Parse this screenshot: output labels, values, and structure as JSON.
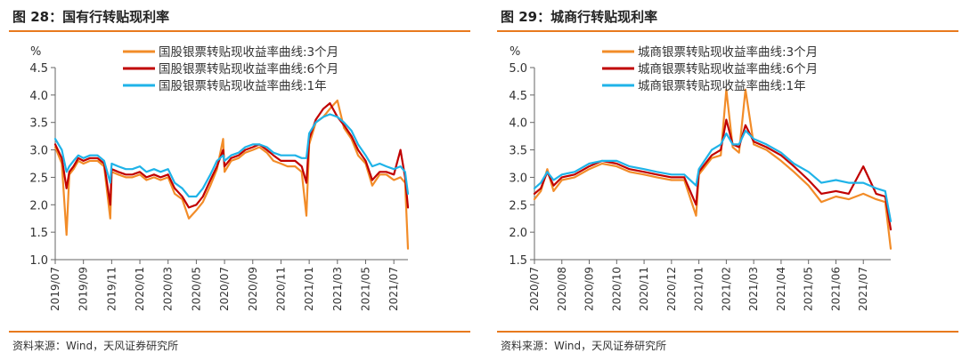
{
  "figures": [
    {
      "title": "图 28：国有行转贴现利率",
      "source": "资料来源：Wind，天风证券研究所"
    },
    {
      "title": "图 29：城商行转贴现利率",
      "source": "资料来源：Wind，天风证券研究所"
    }
  ],
  "chart_data": [
    {
      "type": "line",
      "title": "",
      "ylabel": "%",
      "ylim": [
        1.0,
        4.5
      ],
      "yticks": [
        "1.0",
        "1.5",
        "2.0",
        "2.5",
        "3.0",
        "3.5",
        "4.0",
        "4.5"
      ],
      "xlim": [
        "2019-07",
        "2021-08"
      ],
      "xticks": [
        "2019/07",
        "2019/09",
        "2019/11",
        "2020/01",
        "2020/03",
        "2020/05",
        "2020/07",
        "2020/09",
        "2020/11",
        "2021/01",
        "2021/03",
        "2021/05",
        "2021/07"
      ],
      "legend": "top-center",
      "colors": {
        "series1": "#f28c28",
        "series2": "#c00000",
        "series3": "#1fb3e8",
        "axis": "#666666"
      },
      "series": [
        {
          "name": "国股银票转贴现收益率曲线:3个月",
          "color": "#f28c28",
          "x": [
            "2019-07-01",
            "2019-07-15",
            "2019-07-25",
            "2019-08-01",
            "2019-08-10",
            "2019-08-20",
            "2019-09-01",
            "2019-09-15",
            "2019-10-01",
            "2019-10-15",
            "2019-10-28",
            "2019-11-01",
            "2019-11-15",
            "2019-12-01",
            "2019-12-15",
            "2020-01-01",
            "2020-01-15",
            "2020-02-01",
            "2020-02-15",
            "2020-03-01",
            "2020-03-15",
            "2020-04-01",
            "2020-04-15",
            "2020-05-01",
            "2020-05-15",
            "2020-06-01",
            "2020-06-15",
            "2020-06-28",
            "2020-07-01",
            "2020-07-15",
            "2020-08-01",
            "2020-08-15",
            "2020-09-01",
            "2020-09-15",
            "2020-10-01",
            "2020-10-15",
            "2020-11-01",
            "2020-11-15",
            "2020-12-01",
            "2020-12-15",
            "2020-12-25",
            "2021-01-01",
            "2021-01-15",
            "2021-02-01",
            "2021-02-15",
            "2021-03-01",
            "2021-03-15",
            "2021-04-01",
            "2021-04-15",
            "2021-05-01",
            "2021-05-15",
            "2021-06-01",
            "2021-06-15",
            "2021-07-01",
            "2021-07-15",
            "2021-07-25",
            "2021-08-01"
          ],
          "values": [
            3.05,
            2.75,
            1.45,
            2.55,
            2.65,
            2.8,
            2.75,
            2.8,
            2.8,
            2.7,
            1.75,
            2.6,
            2.55,
            2.5,
            2.5,
            2.55,
            2.45,
            2.5,
            2.45,
            2.5,
            2.2,
            2.1,
            1.75,
            1.9,
            2.05,
            2.35,
            2.65,
            3.2,
            2.6,
            2.8,
            2.85,
            2.95,
            3.0,
            3.05,
            2.95,
            2.8,
            2.75,
            2.7,
            2.7,
            2.6,
            1.8,
            3.1,
            3.5,
            3.6,
            3.75,
            3.9,
            3.4,
            3.2,
            2.9,
            2.75,
            2.35,
            2.55,
            2.55,
            2.45,
            2.5,
            2.4,
            1.2
          ]
        },
        {
          "name": "国股银票转贴现收益率曲线:6个月",
          "color": "#c00000",
          "x": [
            "2019-07-01",
            "2019-07-15",
            "2019-07-25",
            "2019-08-01",
            "2019-08-10",
            "2019-08-20",
            "2019-09-01",
            "2019-09-15",
            "2019-10-01",
            "2019-10-15",
            "2019-10-28",
            "2019-11-01",
            "2019-11-15",
            "2019-12-01",
            "2019-12-15",
            "2020-01-01",
            "2020-01-15",
            "2020-02-01",
            "2020-02-15",
            "2020-03-01",
            "2020-03-15",
            "2020-04-01",
            "2020-04-15",
            "2020-05-01",
            "2020-05-15",
            "2020-06-01",
            "2020-06-15",
            "2020-06-28",
            "2020-07-01",
            "2020-07-15",
            "2020-08-01",
            "2020-08-15",
            "2020-09-01",
            "2020-09-15",
            "2020-10-01",
            "2020-10-15",
            "2020-11-01",
            "2020-11-15",
            "2020-12-01",
            "2020-12-15",
            "2020-12-25",
            "2021-01-01",
            "2021-01-15",
            "2021-02-01",
            "2021-02-15",
            "2021-03-01",
            "2021-03-15",
            "2021-04-01",
            "2021-04-15",
            "2021-05-01",
            "2021-05-15",
            "2021-06-01",
            "2021-06-15",
            "2021-07-01",
            "2021-07-15",
            "2021-07-25",
            "2021-08-01"
          ],
          "values": [
            3.1,
            2.85,
            2.3,
            2.6,
            2.7,
            2.85,
            2.8,
            2.85,
            2.85,
            2.75,
            2.0,
            2.65,
            2.6,
            2.55,
            2.55,
            2.6,
            2.5,
            2.55,
            2.5,
            2.55,
            2.3,
            2.15,
            1.95,
            2.0,
            2.15,
            2.45,
            2.7,
            3.0,
            2.7,
            2.85,
            2.9,
            3.0,
            3.05,
            3.1,
            3.0,
            2.9,
            2.8,
            2.8,
            2.8,
            2.7,
            2.4,
            3.2,
            3.55,
            3.75,
            3.85,
            3.6,
            3.45,
            3.25,
            3.0,
            2.8,
            2.45,
            2.6,
            2.6,
            2.55,
            3.0,
            2.5,
            1.95
          ]
        },
        {
          "name": "国股银票转贴现收益率曲线:1年",
          "color": "#1fb3e8",
          "x": [
            "2019-07-01",
            "2019-07-15",
            "2019-07-25",
            "2019-08-01",
            "2019-08-10",
            "2019-08-20",
            "2019-09-01",
            "2019-09-15",
            "2019-10-01",
            "2019-10-15",
            "2019-10-28",
            "2019-11-01",
            "2019-11-15",
            "2019-12-01",
            "2019-12-15",
            "2020-01-01",
            "2020-01-15",
            "2020-02-01",
            "2020-02-15",
            "2020-03-01",
            "2020-03-15",
            "2020-04-01",
            "2020-04-15",
            "2020-05-01",
            "2020-05-15",
            "2020-06-01",
            "2020-06-15",
            "2020-06-28",
            "2020-07-01",
            "2020-07-15",
            "2020-08-01",
            "2020-08-15",
            "2020-09-01",
            "2020-09-15",
            "2020-10-01",
            "2020-10-15",
            "2020-11-01",
            "2020-11-15",
            "2020-12-01",
            "2020-12-15",
            "2020-12-25",
            "2021-01-01",
            "2021-01-15",
            "2021-02-01",
            "2021-02-15",
            "2021-03-01",
            "2021-03-15",
            "2021-04-01",
            "2021-04-15",
            "2021-05-01",
            "2021-05-15",
            "2021-06-01",
            "2021-06-15",
            "2021-07-01",
            "2021-07-15",
            "2021-07-25",
            "2021-08-01"
          ],
          "values": [
            3.2,
            3.0,
            2.6,
            2.7,
            2.8,
            2.9,
            2.85,
            2.9,
            2.9,
            2.8,
            2.4,
            2.75,
            2.7,
            2.65,
            2.65,
            2.7,
            2.6,
            2.65,
            2.6,
            2.65,
            2.4,
            2.3,
            2.15,
            2.15,
            2.3,
            2.55,
            2.8,
            2.9,
            2.8,
            2.9,
            2.95,
            3.05,
            3.1,
            3.1,
            3.05,
            2.95,
            2.9,
            2.9,
            2.9,
            2.85,
            2.85,
            3.3,
            3.5,
            3.6,
            3.65,
            3.6,
            3.5,
            3.35,
            3.1,
            2.9,
            2.7,
            2.75,
            2.7,
            2.65,
            2.7,
            2.6,
            2.2
          ]
        }
      ]
    },
    {
      "type": "line",
      "title": "",
      "ylabel": "%",
      "ylim": [
        1.5,
        5.0
      ],
      "yticks": [
        "1.5",
        "2.0",
        "2.5",
        "3.0",
        "3.5",
        "4.0",
        "4.5",
        "5.0"
      ],
      "xlim": [
        "2020-07",
        "2021-08"
      ],
      "xticks": [
        "2020/07",
        "2020/08",
        "2020/09",
        "2020/10",
        "2020/11",
        "2020/12",
        "2021/01",
        "2021/02",
        "2021/03",
        "2021/04",
        "2021/05",
        "2021/06",
        "2021/07"
      ],
      "legend": "top-center",
      "colors": {
        "series1": "#f28c28",
        "series2": "#c00000",
        "series3": "#1fb3e8",
        "axis": "#666666"
      },
      "series": [
        {
          "name": "城商银票转贴现收益率曲线:3个月",
          "color": "#f28c28",
          "x": [
            "2020-07-01",
            "2020-07-08",
            "2020-07-15",
            "2020-07-22",
            "2020-08-01",
            "2020-08-15",
            "2020-09-01",
            "2020-09-15",
            "2020-10-01",
            "2020-10-15",
            "2020-11-01",
            "2020-11-15",
            "2020-12-01",
            "2020-12-15",
            "2020-12-28",
            "2021-01-01",
            "2021-01-15",
            "2021-01-25",
            "2021-02-01",
            "2021-02-08",
            "2021-02-15",
            "2021-02-22",
            "2021-03-01",
            "2021-03-15",
            "2021-04-01",
            "2021-04-15",
            "2021-05-01",
            "2021-05-15",
            "2021-06-01",
            "2021-06-15",
            "2021-07-01",
            "2021-07-15",
            "2021-07-25",
            "2021-08-01"
          ],
          "values": [
            2.6,
            2.75,
            3.15,
            2.75,
            2.95,
            3.0,
            3.15,
            3.25,
            3.2,
            3.1,
            3.05,
            3.0,
            2.95,
            2.95,
            2.3,
            3.05,
            3.35,
            3.4,
            4.6,
            3.55,
            3.45,
            4.6,
            3.6,
            3.5,
            3.3,
            3.1,
            2.85,
            2.55,
            2.65,
            2.6,
            2.7,
            2.6,
            2.55,
            1.7
          ]
        },
        {
          "name": "城商银票转贴现收益率曲线:6个月",
          "color": "#c00000",
          "x": [
            "2020-07-01",
            "2020-07-08",
            "2020-07-15",
            "2020-07-22",
            "2020-08-01",
            "2020-08-15",
            "2020-09-01",
            "2020-09-15",
            "2020-10-01",
            "2020-10-15",
            "2020-11-01",
            "2020-11-15",
            "2020-12-01",
            "2020-12-15",
            "2020-12-28",
            "2021-01-01",
            "2021-01-15",
            "2021-01-25",
            "2021-02-01",
            "2021-02-08",
            "2021-02-15",
            "2021-02-22",
            "2021-03-01",
            "2021-03-15",
            "2021-04-01",
            "2021-04-15",
            "2021-05-01",
            "2021-05-15",
            "2021-06-01",
            "2021-06-15",
            "2021-07-01",
            "2021-07-15",
            "2021-07-25",
            "2021-08-01"
          ],
          "values": [
            2.7,
            2.8,
            3.1,
            2.85,
            3.0,
            3.05,
            3.2,
            3.3,
            3.25,
            3.15,
            3.1,
            3.05,
            3.0,
            3.0,
            2.5,
            3.1,
            3.4,
            3.5,
            4.05,
            3.6,
            3.55,
            3.95,
            3.65,
            3.55,
            3.4,
            3.2,
            2.95,
            2.7,
            2.75,
            2.7,
            3.2,
            2.7,
            2.65,
            2.05
          ]
        },
        {
          "name": "城商银票转贴现收益率曲线:1年",
          "color": "#1fb3e8",
          "x": [
            "2020-07-01",
            "2020-07-08",
            "2020-07-15",
            "2020-07-22",
            "2020-08-01",
            "2020-08-15",
            "2020-09-01",
            "2020-09-15",
            "2020-10-01",
            "2020-10-15",
            "2020-11-01",
            "2020-11-15",
            "2020-12-01",
            "2020-12-15",
            "2020-12-28",
            "2021-01-01",
            "2021-01-15",
            "2021-01-25",
            "2021-02-01",
            "2021-02-08",
            "2021-02-15",
            "2021-02-22",
            "2021-03-01",
            "2021-03-15",
            "2021-04-01",
            "2021-04-15",
            "2021-05-01",
            "2021-05-15",
            "2021-06-01",
            "2021-06-15",
            "2021-07-01",
            "2021-07-15",
            "2021-07-25",
            "2021-08-01"
          ],
          "values": [
            2.8,
            2.9,
            3.1,
            2.95,
            3.05,
            3.1,
            3.25,
            3.3,
            3.3,
            3.2,
            3.15,
            3.1,
            3.05,
            3.05,
            2.85,
            3.15,
            3.5,
            3.6,
            3.8,
            3.6,
            3.6,
            3.85,
            3.7,
            3.6,
            3.45,
            3.25,
            3.1,
            2.9,
            2.95,
            2.9,
            2.9,
            2.8,
            2.75,
            2.2
          ]
        }
      ]
    }
  ]
}
